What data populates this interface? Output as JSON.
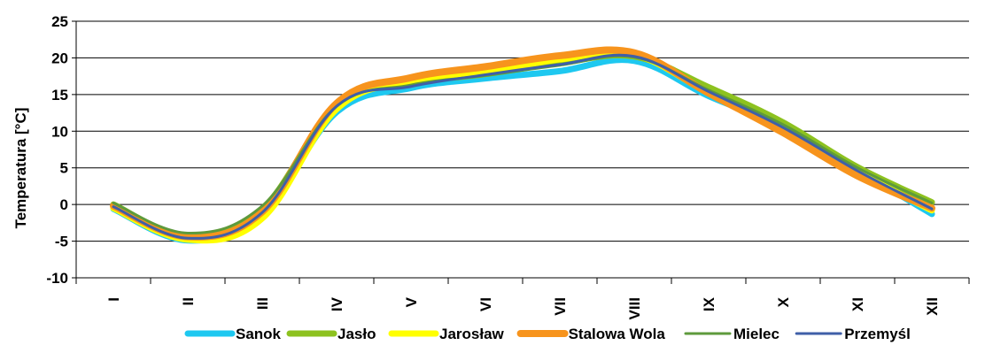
{
  "chart_data": {
    "type": "line",
    "ylabel": "Temperatura [°C]",
    "xlabel": "",
    "title": "",
    "ylim": [
      -10,
      25
    ],
    "yticks": [
      25,
      20,
      15,
      10,
      5,
      0,
      -5,
      -10
    ],
    "categories": [
      "I",
      "II",
      "III",
      "IV",
      "V",
      "VI",
      "VII",
      "VIII",
      "IX",
      "X",
      "XI",
      "XII"
    ],
    "grid": "horizontal",
    "legend_position": "bottom",
    "series": [
      {
        "name": "Sanok",
        "color": "#1EC8F0",
        "width": 7,
        "values": [
          -0.6,
          -4.9,
          -1.3,
          12.6,
          15.9,
          17.2,
          18.2,
          19.6,
          14.8,
          10.6,
          4.7,
          -1.3
        ]
      },
      {
        "name": "Jasło",
        "color": "#8DC21F",
        "width": 7,
        "values": [
          0.0,
          -4.3,
          -0.6,
          13.5,
          16.5,
          17.8,
          19.3,
          20.2,
          16.0,
          11.2,
          5.1,
          0.3
        ]
      },
      {
        "name": "Jarosław",
        "color": "#FFFF00",
        "width": 7,
        "values": [
          -0.5,
          -4.8,
          -1.9,
          13.0,
          16.8,
          18.0,
          19.8,
          20.4,
          15.2,
          10.0,
          4.4,
          -0.8
        ]
      },
      {
        "name": "Stalowa Wola",
        "color": "#F7941D",
        "width": 8,
        "values": [
          -0.2,
          -4.4,
          -1.0,
          13.8,
          17.3,
          18.8,
          20.3,
          20.7,
          15.2,
          9.8,
          3.9,
          -0.5
        ]
      },
      {
        "name": "Mielec",
        "color": "#5E9A3C",
        "width": 3,
        "values": [
          0.2,
          -3.9,
          -0.2,
          13.4,
          16.3,
          17.6,
          19.0,
          20.1,
          15.6,
          10.9,
          5.0,
          0.2
        ]
      },
      {
        "name": "Przemyśl",
        "color": "#3F5FA8",
        "width": 3,
        "values": [
          -0.3,
          -4.6,
          -1.1,
          13.4,
          16.1,
          17.7,
          19.1,
          20.2,
          15.4,
          10.5,
          4.6,
          -0.6
        ]
      }
    ]
  }
}
